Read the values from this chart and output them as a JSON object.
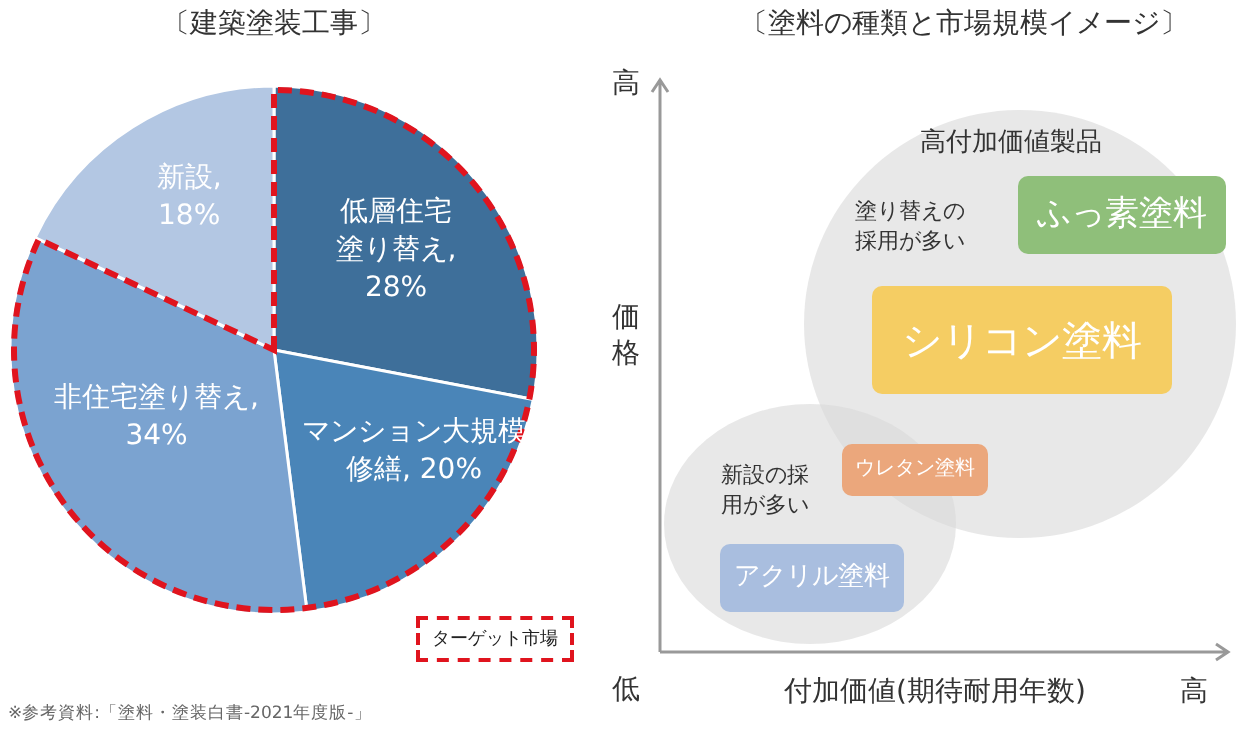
{
  "chart_data": [
    {
      "type": "pie",
      "title": "〔建築塗装工事〕",
      "categories": [
        "低層住宅塗り替え",
        "マンション大規模修繕",
        "非住宅塗り替え",
        "新設"
      ],
      "values": [
        28,
        20,
        34,
        18
      ],
      "value_labels": [
        ", 28%",
        ", 20%",
        ", 34%",
        ", 18%"
      ],
      "colors": [
        "#3e6f9a",
        "#4a85b8",
        "#7ba3d0",
        "#b3c7e3"
      ],
      "annotations": [
        "ターゲット市場",
        "※参考資料:「塗料・塗装白書-2021年度版-」"
      ]
    },
    {
      "type": "other",
      "title": "〔塗料の種類と市場規模イメージ〕",
      "xlabel": "付加価値(期待耐用年数)",
      "ylabel": "価格",
      "categories": [
        "ふっ素塗料",
        "シリコン塗料",
        "ウレタン塗料",
        "アクリル塗料"
      ],
      "colors": [
        "#8fbf7a",
        "#f5cd63",
        "#eba77c",
        "#a9bedf"
      ],
      "annotations": [
        "高",
        "低",
        "高",
        "高付加価値製品",
        "塗り替えの採用が多い",
        "新設の採用が多い"
      ]
    }
  ]
}
